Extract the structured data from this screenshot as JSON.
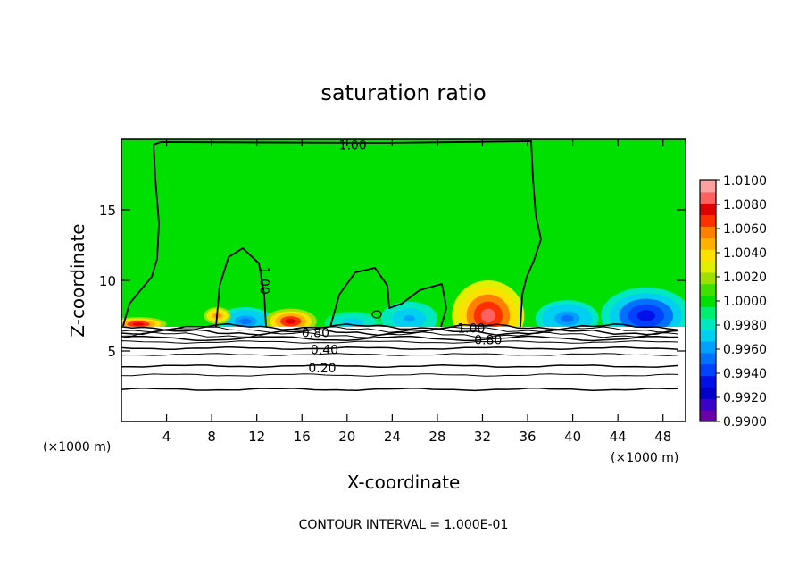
{
  "chart_data": {
    "type": "heatmap",
    "title": "saturation ratio",
    "xlabel": "X-coordinate",
    "ylabel": "Z-coordinate",
    "x_unit_left": "(×1000 m)",
    "x_unit_right": "(×1000 m)",
    "footer": "CONTOUR INTERVAL = 1.000E-01",
    "xlim": [
      0,
      50
    ],
    "ylim": [
      0,
      20
    ],
    "x_ticks": [
      4,
      8,
      12,
      16,
      20,
      24,
      28,
      32,
      36,
      40,
      44,
      48
    ],
    "y_ticks": [
      5,
      10,
      15
    ],
    "colorbar": {
      "labels": [
        "1.0100",
        "1.0080",
        "1.0060",
        "1.0040",
        "1.0020",
        "1.0000",
        "0.9980",
        "0.9960",
        "0.9940",
        "0.9920",
        "0.9900"
      ],
      "levels": [
        0.99,
        0.991,
        0.992,
        0.993,
        0.994,
        0.995,
        0.996,
        0.997,
        0.998,
        0.999,
        1.0,
        1.001,
        1.002,
        1.003,
        1.004,
        1.005,
        1.006,
        1.007,
        1.008,
        1.009,
        1.01
      ],
      "colors": [
        "#6a00a8",
        "#3a00c8",
        "#0000cc",
        "#0010e6",
        "#0040ff",
        "#0070ff",
        "#00a0ff",
        "#00d0f0",
        "#00e8c0",
        "#00ee70",
        "#00e000",
        "#40e000",
        "#a0e000",
        "#e0f000",
        "#ffe000",
        "#ffb000",
        "#ff8000",
        "#ff3000",
        "#e00000",
        "#ff6060",
        "#ffa0a0"
      ]
    },
    "contour_labels": [
      {
        "text": "1.00",
        "x": 20.5,
        "z": 19.6
      },
      {
        "text": "1.00",
        "x": 12.3,
        "z": 10.3
      },
      {
        "text": "1.00",
        "x": 31.0,
        "z": 6.6
      },
      {
        "text": "0.80",
        "x": 17.2,
        "z": 6.3
      },
      {
        "text": "0.80",
        "x": 32.5,
        "z": 5.8
      },
      {
        "text": "0.40",
        "x": 18.0,
        "z": 5.1
      },
      {
        "text": "0.20",
        "x": 17.8,
        "z": 3.8
      }
    ],
    "warm_lobes": [
      {
        "x": 1.5,
        "z": 6.9,
        "rx": 2.5,
        "rz": 0.5,
        "level": 1.008
      },
      {
        "x": 15.0,
        "z": 7.1,
        "rx": 2.3,
        "rz": 0.9,
        "level": 1.008
      },
      {
        "x": 32.5,
        "z": 7.5,
        "rx": 3.2,
        "rz": 2.5,
        "level": 1.009
      },
      {
        "x": 8.5,
        "z": 7.5,
        "rx": 1.2,
        "rz": 0.6,
        "level": 1.006
      }
    ],
    "cool_lobes": [
      {
        "x": 46.5,
        "z": 7.5,
        "rx": 4.0,
        "rz": 2.0,
        "level": 0.993
      },
      {
        "x": 11.0,
        "z": 7.1,
        "rx": 2.5,
        "rz": 1.0,
        "level": 0.995
      },
      {
        "x": 25.5,
        "z": 7.3,
        "rx": 2.5,
        "rz": 1.2,
        "level": 0.996
      },
      {
        "x": 39.5,
        "z": 7.3,
        "rx": 2.8,
        "rz": 1.3,
        "level": 0.995
      },
      {
        "x": 20.5,
        "z": 7.0,
        "rx": 2.5,
        "rz": 0.8,
        "level": 0.997
      }
    ]
  }
}
